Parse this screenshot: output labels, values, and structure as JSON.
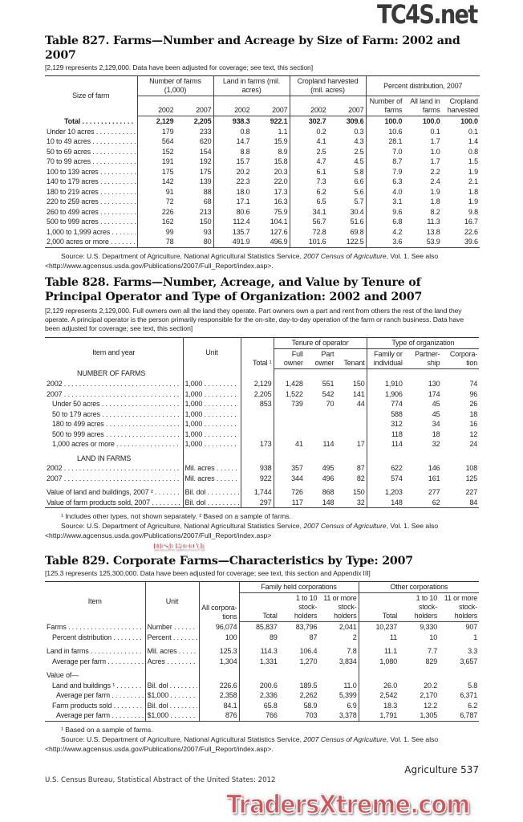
{
  "t827": {
    "title": "Table 827. Farms—Number and Acreage by Size of Farm: 2002 and 2007",
    "note": "[2,129 represents 2,129,000. Data have been adjusted for coverage; see text, this section]",
    "head": {
      "stub": "Size of farm",
      "g1": "Number of farms (1,000)",
      "g2": "Land in farms (mil. acres)",
      "g3": "Cropland harvested (mil. acres)",
      "g4": "Percent distribution, 2007",
      "y2002": "2002",
      "y2007": "2007",
      "p1": "Number of farms",
      "p2": "All land in farms",
      "p3": "Cropland harvested"
    },
    "rows": [
      {
        "label": "Total",
        "bold": true,
        "values": [
          "2,129",
          "2,205",
          "938.3",
          "922.1",
          "302.7",
          "309.6",
          "100.0",
          "100.0",
          "100.0"
        ]
      },
      {
        "label": "Under 10 acres",
        "values": [
          "179",
          "233",
          "0.8",
          "1.1",
          "0.2",
          "0.3",
          "10.6",
          "0.1",
          "0.1"
        ]
      },
      {
        "label": "10 to 49 acres",
        "values": [
          "564",
          "620",
          "14.7",
          "15.9",
          "4.1",
          "4.3",
          "28.1",
          "1.7",
          "1.4"
        ]
      },
      {
        "label": "50 to 69 acres",
        "values": [
          "152",
          "154",
          "8.8",
          "8.9",
          "2.5",
          "2.5",
          "7.0",
          "1.0",
          "0.8"
        ]
      },
      {
        "label": "70 to 99 acres",
        "values": [
          "191",
          "192",
          "15.7",
          "15.8",
          "4.7",
          "4.5",
          "8.7",
          "1.7",
          "1.5"
        ]
      },
      {
        "label": "100 to 139 acres",
        "values": [
          "175",
          "175",
          "20.2",
          "20.3",
          "6.1",
          "5.8",
          "7.9",
          "2.2",
          "1.9"
        ]
      },
      {
        "label": "140 to 179 acres",
        "values": [
          "142",
          "139",
          "22.3",
          "22.0",
          "7.3",
          "6.6",
          "6.3",
          "2.4",
          "2.1"
        ]
      },
      {
        "label": "180 to 219 acres",
        "values": [
          "91",
          "88",
          "18.0",
          "17.3",
          "6.2",
          "5.6",
          "4.0",
          "1.9",
          "1.8"
        ]
      },
      {
        "label": "220 to 259 acres",
        "values": [
          "72",
          "68",
          "17.1",
          "16.3",
          "6.5",
          "5.7",
          "3.1",
          "1.8",
          "1.9"
        ]
      },
      {
        "label": "260 to 499 acres",
        "values": [
          "226",
          "213",
          "80.6",
          "75.9",
          "34.1",
          "30.4",
          "9.6",
          "8.2",
          "9.8"
        ]
      },
      {
        "label": "500 to 999 acres",
        "values": [
          "162",
          "150",
          "112.4",
          "104.1",
          "56.7",
          "51.6",
          "6.8",
          "11.3",
          "16.7"
        ]
      },
      {
        "label": "1,000 to 1,999 acres",
        "values": [
          "99",
          "93",
          "135.7",
          "127.6",
          "72.8",
          "69.8",
          "4.2",
          "13.8",
          "22.6"
        ]
      },
      {
        "label": "2,000 acres or more",
        "values": [
          "78",
          "80",
          "491.9",
          "496.9",
          "101.6",
          "122.5",
          "3.6",
          "53.9",
          "39.6"
        ]
      }
    ],
    "source": {
      "pre": "Source: U.S. Department of Agriculture, National Agricultural Statistics Service, ",
      "ital": "2007 Census of Agriculture",
      "post": ", Vol. 1. See also",
      "url": "<http://www.agcensus.usda.gov/Publications/2007/Full_Report/index.asp>."
    }
  },
  "t828": {
    "title": "Table 828. Farms—Number, Acreage, and Value by Tenure of Principal Operator and Type of Organization: 2002 and 2007",
    "note": "[2,129 represents 2,129,000. Full owners own all the land they operate. Part owners own a part and rent from others the rest of the land they operate. A principal operator is the person primarily responsible for the on-site, day-to-day operation of the farm or ranch business. Data have been adjusted for coverage; see text, this section]",
    "head": {
      "stub": "Item and year",
      "unit": "Unit",
      "total": "Total ¹",
      "g1": "Tenure of operator",
      "g2": "Type of organization",
      "c1": "Full owner",
      "c2": "Part owner",
      "c3": "Tenant",
      "c4": "Family or individual",
      "c5": "Partner-ship",
      "c6": "Corpora-tion"
    },
    "rows": [
      {
        "section": "NUMBER OF FARMS"
      },
      {
        "label": "2002",
        "unit": "1,000",
        "values": [
          "2,129",
          "1,428",
          "551",
          "150",
          "1,910",
          "130",
          "74"
        ]
      },
      {
        "label": "2007",
        "unit": "1,000",
        "values": [
          "2,205",
          "1,522",
          "542",
          "141",
          "1,906",
          "174",
          "96"
        ]
      },
      {
        "label": "Under 50 acres",
        "indent": 1,
        "unit": "1,000",
        "values": [
          "853",
          "739",
          "70",
          "44",
          "774",
          "45",
          "26"
        ]
      },
      {
        "label": "50 to 179 acres",
        "indent": 1,
        "unit": "1,000",
        "values": [
          "",
          "",
          "",
          "",
          "588",
          "45",
          "18"
        ]
      },
      {
        "label": "180 to 499 acres",
        "indent": 1,
        "unit": "1,000",
        "values": [
          "",
          "",
          "",
          "",
          "312",
          "34",
          "16"
        ]
      },
      {
        "label": "500 to 999 acres",
        "indent": 1,
        "unit": "1,000",
        "values": [
          "",
          "",
          "",
          "",
          "118",
          "18",
          "12"
        ]
      },
      {
        "label": "1,000 acres or more",
        "indent": 1,
        "unit": "1,000",
        "values": [
          "173",
          "41",
          "114",
          "17",
          "114",
          "32",
          "24"
        ]
      },
      {
        "section": "LAND IN FARMS",
        "gap": true
      },
      {
        "label": "2002",
        "unit": "Mil. acres",
        "values": [
          "938",
          "357",
          "495",
          "87",
          "622",
          "146",
          "108"
        ]
      },
      {
        "label": "2007",
        "unit": "Mil. acres",
        "values": [
          "922",
          "344",
          "496",
          "82",
          "574",
          "161",
          "125"
        ]
      },
      {
        "label": "Value of land and buildings, 2007 ²",
        "unit": "Bil. dol",
        "gap": true,
        "values": [
          "1,744",
          "726",
          "868",
          "150",
          "1,203",
          "277",
          "227"
        ]
      },
      {
        "label": "Value of farm products sold, 2007",
        "unit": "Bil. dol",
        "values": [
          "297",
          "117",
          "148",
          "32",
          "148",
          "62",
          "84"
        ]
      }
    ],
    "footnote": "¹ Includes other types, not shown separately. ² Based on a sample of farms.",
    "source": {
      "pre": "Source: U.S. Department of Agriculture, National Agricultural Statistics Service, ",
      "ital": "2007 Census of Agriculture",
      "post": ", Vol. 1. See also",
      "url": "<http://www.agcensus.usda.gov/Publications/2007/Full_Report/index.asp>"
    }
  },
  "t829": {
    "title": "Table 829. Corporate Farms—Characteristics by Type: 2007",
    "note": "[125.3 represents 125,300,000. Data have been adjusted for coverage; see text, this section and Appendix III]",
    "head": {
      "stub": "Item",
      "unit": "Unit",
      "all": "All corpora-tions",
      "g1": "Family held corporations",
      "g2": "Other corporations",
      "total": "Total",
      "c1": "1 to 10 stock-holders",
      "c2": "11 or more stock-holders"
    },
    "rows": [
      {
        "label": "Farms",
        "unit": "Number",
        "values": [
          "96,074",
          "85,837",
          "83,796",
          "2,041",
          "10,237",
          "9,330",
          "907"
        ]
      },
      {
        "label": "Percent distribution",
        "indent": 1,
        "unit": "Percent",
        "values": [
          "100",
          "89",
          "87",
          "2",
          "11",
          "10",
          "1"
        ]
      },
      {
        "label": "Land in farms",
        "unit": "Mil. acres",
        "gap": true,
        "values": [
          "125.3",
          "114.3",
          "106.4",
          "7.8",
          "11.1",
          "7.7",
          "3.3"
        ]
      },
      {
        "label": "Average per farm",
        "indent": 1,
        "unit": "Acres",
        "values": [
          "1,304",
          "1,331",
          "1,270",
          "3,834",
          "1,080",
          "829",
          "3,657"
        ]
      },
      {
        "section": "Value of—",
        "gap": true,
        "left": true
      },
      {
        "label": "Land and buildings ¹",
        "indent": 1,
        "unit": "Bil. dol",
        "values": [
          "226.6",
          "200.6",
          "189.5",
          "11.0",
          "26.0",
          "20.2",
          "5.8"
        ]
      },
      {
        "label": "Average per farm",
        "indent": 2,
        "unit": "$1,000",
        "values": [
          "2,358",
          "2,336",
          "2,262",
          "5,399",
          "2,542",
          "2,170",
          "6,371"
        ]
      },
      {
        "label": "Farm products sold",
        "indent": 1,
        "unit": "Bil. dol",
        "values": [
          "84.1",
          "65.8",
          "58.9",
          "6.9",
          "18.3",
          "12.2",
          "6.2"
        ]
      },
      {
        "label": "Average per farm",
        "indent": 2,
        "unit": "$1,000",
        "values": [
          "876",
          "766",
          "703",
          "3,378",
          "1,791",
          "1,305",
          "6,787"
        ]
      }
    ],
    "footnote": "¹ Based on a sample of farms.",
    "source": {
      "pre": "Source: U.S. Department of Agriculture, National Agricultural Statistics Service, ",
      "ital": "2007 Census of Agriculture",
      "post": ", Vol. 1. See also",
      "url": "<http://www.agcensus.usda.gov/Publications/2007/Full_Report/index.asp>."
    }
  },
  "footer": {
    "left": "U.S. Census Bureau, Statistical Abstract of the United States: 2012",
    "right": "Agriculture  537"
  },
  "watermarks": {
    "top": "TC4S.net",
    "middle": "DLSUB.COM",
    "bottom": "TradersXtreme.com"
  }
}
